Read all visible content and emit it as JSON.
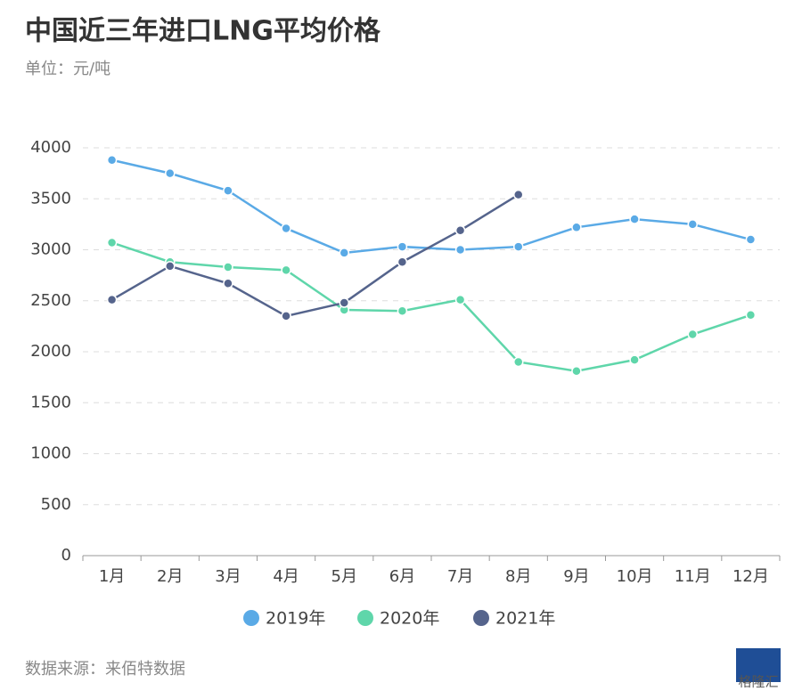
{
  "chart_data": {
    "type": "line",
    "title": "中国近三年进口LNG平均价格",
    "subtitle": "单位：元/吨",
    "source": "数据来源：来佰特数据",
    "watermark": "格隆汇",
    "categories": [
      "1月",
      "2月",
      "3月",
      "4月",
      "5月",
      "6月",
      "7月",
      "8月",
      "9月",
      "10月",
      "11月",
      "12月"
    ],
    "series": [
      {
        "name": "2019年",
        "color": "#5aaae6",
        "values": [
          3880,
          3750,
          3580,
          3210,
          2970,
          3030,
          3000,
          3030,
          3220,
          3300,
          3250,
          3100
        ]
      },
      {
        "name": "2020年",
        "color": "#5fd6aa",
        "values": [
          3070,
          2880,
          2830,
          2800,
          2410,
          2400,
          2510,
          1900,
          1810,
          1920,
          2170,
          2360
        ]
      },
      {
        "name": "2021年",
        "color": "#55648c",
        "values": [
          2510,
          2840,
          2670,
          2350,
          2480,
          2880,
          3190,
          3540,
          null,
          null,
          null,
          null
        ]
      }
    ],
    "ylim": [
      0,
      4000
    ],
    "yticks": [
      0,
      500,
      1000,
      1500,
      2000,
      2500,
      3000,
      3500,
      4000
    ],
    "grid": true,
    "legend": "bottom"
  }
}
